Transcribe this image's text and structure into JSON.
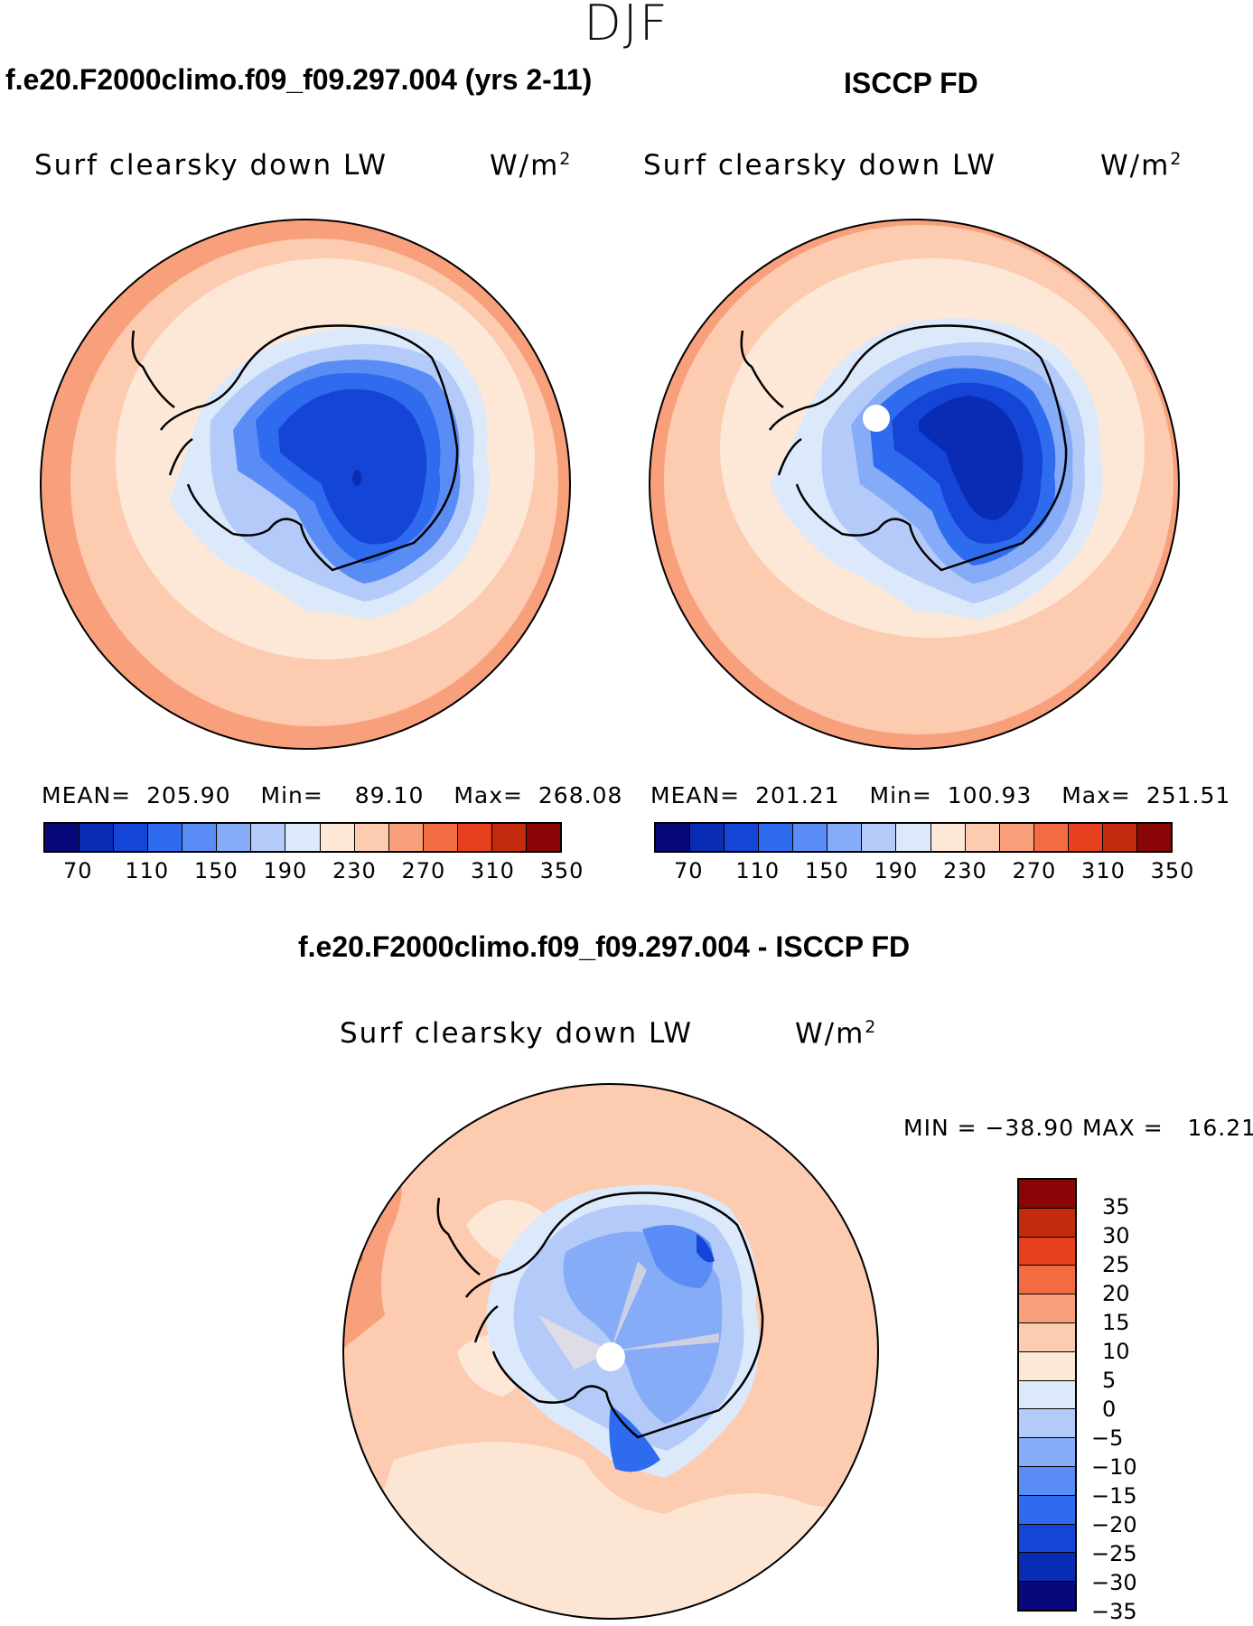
{
  "season": "DJF",
  "panels": {
    "model": {
      "title": "f.e20.F2000climo.f09_f09.297.004 (yrs 2-11)",
      "label": "Surf clearsky down LW",
      "units": "W/m",
      "units_sup": "2",
      "stats": {
        "mean_label": "MEAN=",
        "mean": "205.90",
        "min_label": "Min=",
        "min": "89.10",
        "max_label": "Max=",
        "max": "268.08"
      }
    },
    "obs": {
      "title": "ISCCP FD",
      "label": "Surf clearsky down LW",
      "units": "W/m",
      "units_sup": "2",
      "stats": {
        "mean_label": "MEAN=",
        "mean": "201.21",
        "min_label": "Min=",
        "min": "100.93",
        "max_label": "Max=",
        "max": "251.51"
      }
    },
    "diff": {
      "title": "f.e20.F2000climo.f09_f09.297.004 - ISCCP FD",
      "label": "Surf clearsky down LW",
      "units": "W/m",
      "units_sup": "2",
      "minmax": "MIN = −38.90 MAX =   16.21"
    }
  },
  "colorbar_main": {
    "colors": [
      "#08087a",
      "#0a2cb4",
      "#1545d6",
      "#2f6bef",
      "#5a8cf5",
      "#86abf7",
      "#b4cbf9",
      "#dce9fb",
      "#fde8d8",
      "#fccbb0",
      "#f8a07c",
      "#f26b43",
      "#e6401f",
      "#c42a0e",
      "#8a0606"
    ],
    "tick_labels": [
      "70",
      "110",
      "150",
      "190",
      "230",
      "270",
      "310",
      "350"
    ]
  },
  "colorbar_diff": {
    "colors": [
      "#8a0606",
      "#c42a0e",
      "#e6401f",
      "#f26b43",
      "#f8a07c",
      "#fccbb0",
      "#fde8d8",
      "#dce9fb",
      "#b4cbf9",
      "#86abf7",
      "#5a8cf5",
      "#2f6bef",
      "#1545d6",
      "#0a2cb4",
      "#08087a"
    ],
    "tick_labels": [
      "35",
      "30",
      "25",
      "20",
      "15",
      "10",
      "5",
      "0",
      "−5",
      "−10",
      "−15",
      "−20",
      "−25",
      "−30",
      "−35"
    ]
  }
}
